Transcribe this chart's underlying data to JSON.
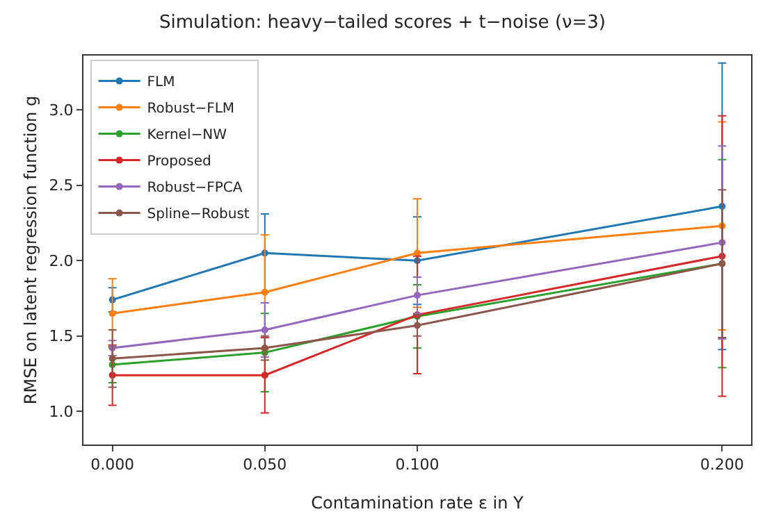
{
  "chart_data": {
    "type": "line",
    "title": "Simulation: heavy−tailed scores + t−noise (ν=3)",
    "xlabel": "Contamination rate ε in Y",
    "ylabel": "RMSE on latent regression function g",
    "x": [
      0,
      0.05,
      0.1,
      0.2
    ],
    "series": [
      {
        "name": "FLM",
        "color": "#1f77b4",
        "values": [
          1.74,
          2.05,
          2.0,
          2.36
        ],
        "errors": [
          0.08,
          0.26,
          0.29,
          0.95
        ]
      },
      {
        "name": "Robust−FLM",
        "color": "#ff7f0e",
        "values": [
          1.65,
          1.79,
          2.05,
          2.23
        ],
        "errors": [
          0.23,
          0.38,
          0.36,
          0.69
        ]
      },
      {
        "name": "Kernel−NW",
        "color": "#2ca02c",
        "values": [
          1.31,
          1.39,
          1.63,
          1.98
        ],
        "errors": [
          0.12,
          0.26,
          0.21,
          0.69
        ]
      },
      {
        "name": "Proposed",
        "color": "#d62728",
        "values": [
          1.24,
          1.24,
          1.64,
          2.03
        ],
        "errors": [
          0.2,
          0.25,
          0.39,
          0.93
        ]
      },
      {
        "name": "Robust−FPCA",
        "color": "#9467bd",
        "values": [
          1.42,
          1.54,
          1.77,
          2.12
        ],
        "errors": [
          0.05,
          0.18,
          0.12,
          0.64
        ]
      },
      {
        "name": "Spline−Robust",
        "color": "#8c564b",
        "values": [
          1.35,
          1.42,
          1.57,
          1.98
        ],
        "errors": [
          0.19,
          0.08,
          0.07,
          0.49
        ]
      }
    ],
    "xlim": [
      -0.0095,
      0.2095
    ],
    "xticks": [
      {
        "value": 0,
        "label": "0.000"
      },
      {
        "value": 0.05,
        "label": "0.050"
      },
      {
        "value": 0.1,
        "label": "0.100"
      },
      {
        "value": 0.2,
        "label": "0.200"
      }
    ],
    "ylim": [
      0.78,
      3.36
    ],
    "yticks": [
      {
        "value": 1,
        "label": "1.0"
      },
      {
        "value": 1.5,
        "label": "1.5"
      },
      {
        "value": 2,
        "label": "2.0"
      },
      {
        "value": 2.5,
        "label": "2.5"
      },
      {
        "value": 3,
        "label": "3.0"
      }
    ],
    "grid": false,
    "legend": "top left",
    "marker": "circle",
    "line_style": "solid"
  }
}
